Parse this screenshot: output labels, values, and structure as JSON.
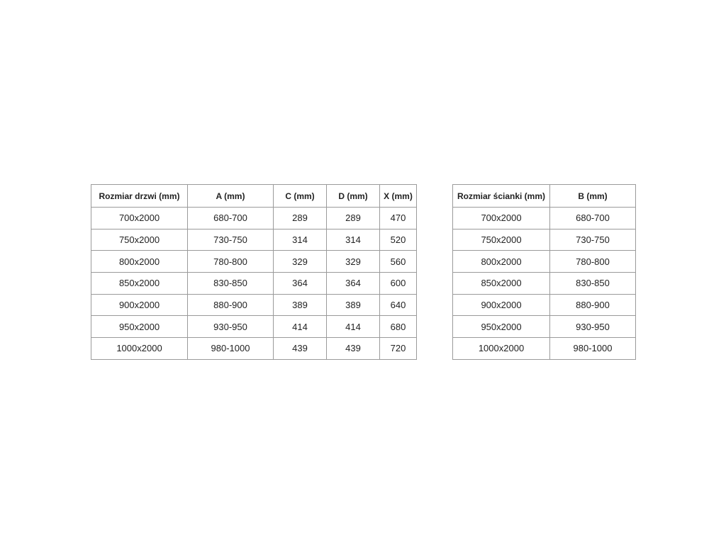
{
  "door_table": {
    "headers": [
      "Rozmiar drzwi (mm)",
      "A (mm)",
      "C (mm)",
      "D (mm)",
      "X (mm)"
    ],
    "rows": [
      [
        "700x2000",
        "680-700",
        "289",
        "289",
        "470"
      ],
      [
        "750x2000",
        "730-750",
        "314",
        "314",
        "520"
      ],
      [
        "800x2000",
        "780-800",
        "329",
        "329",
        "560"
      ],
      [
        "850x2000",
        "830-850",
        "364",
        "364",
        "600"
      ],
      [
        "900x2000",
        "880-900",
        "389",
        "389",
        "640"
      ],
      [
        "950x2000",
        "930-950",
        "414",
        "414",
        "680"
      ],
      [
        "1000x2000",
        "980-1000",
        "439",
        "439",
        "720"
      ]
    ]
  },
  "panel_table": {
    "headers": [
      "Rozmiar ścianki (mm)",
      "B (mm)"
    ],
    "rows": [
      [
        "700x2000",
        "680-700"
      ],
      [
        "750x2000",
        "730-750"
      ],
      [
        "800x2000",
        "780-800"
      ],
      [
        "850x2000",
        "830-850"
      ],
      [
        "900x2000",
        "880-900"
      ],
      [
        "950x2000",
        "930-950"
      ],
      [
        "1000x2000",
        "980-1000"
      ]
    ]
  }
}
